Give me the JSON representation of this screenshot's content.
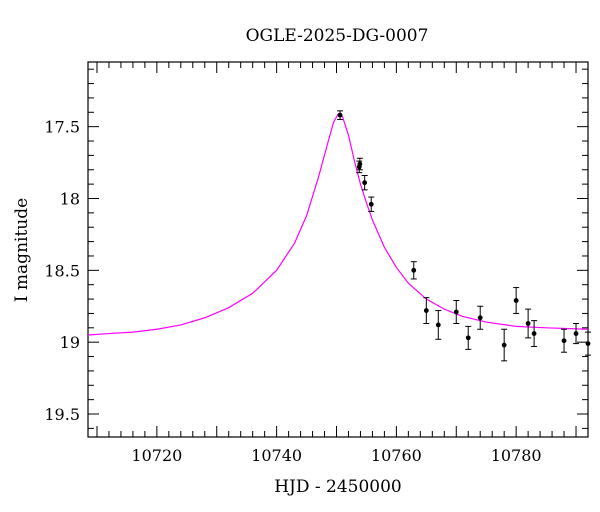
{
  "chart_data": {
    "type": "scatter",
    "title": "OGLE-2025-DG-0007",
    "xlabel": "HJD - 2450000",
    "ylabel": "I magnitude",
    "xlim": [
      10708.5,
      10792
    ],
    "ylim": [
      19.66,
      17.05
    ],
    "y_inverted": true,
    "x_ticks": [
      10720,
      10740,
      10760,
      10780
    ],
    "x_tick_labels": [
      "10720",
      "10740",
      "10760",
      "10780"
    ],
    "y_ticks": [
      17.5,
      18,
      18.5,
      19,
      19.5
    ],
    "y_tick_labels": [
      "17.5",
      "18",
      "18.5",
      "19",
      "19.5"
    ],
    "grid": false,
    "colors": {
      "model": "#ff00ff",
      "points": "#000000",
      "frame": "#000000"
    },
    "series": [
      {
        "kind": "points_with_errorbars",
        "x": [
          10750.6,
          10753.8,
          10753.9,
          10754.7,
          10755.8,
          10762.9,
          10765.0,
          10767.0,
          10770.0,
          10772.0,
          10774.0,
          10778.0,
          10780.0,
          10782.0,
          10783.0,
          10788.0,
          10790.0,
          10792.0
        ],
        "y": [
          17.42,
          17.78,
          17.76,
          17.89,
          18.04,
          18.5,
          18.78,
          18.88,
          18.79,
          18.97,
          18.83,
          19.02,
          18.71,
          18.87,
          18.94,
          18.99,
          18.94,
          19.01
        ],
        "err": [
          0.03,
          0.04,
          0.04,
          0.05,
          0.05,
          0.06,
          0.09,
          0.1,
          0.08,
          0.08,
          0.08,
          0.11,
          0.09,
          0.1,
          0.09,
          0.08,
          0.07,
          0.08
        ]
      },
      {
        "kind": "model_curve",
        "x": [
          10708.5,
          10712,
          10716,
          10720,
          10724,
          10728,
          10732,
          10736,
          10740,
          10743,
          10745,
          10747,
          10748.5,
          10749.5,
          10750.3,
          10751,
          10752,
          10753,
          10754,
          10755,
          10756,
          10758,
          10760,
          10762,
          10765,
          10768,
          10771,
          10775,
          10780,
          10785,
          10792
        ],
        "y": [
          18.95,
          18.94,
          18.93,
          18.91,
          18.88,
          18.83,
          18.76,
          18.66,
          18.5,
          18.31,
          18.12,
          17.85,
          17.62,
          17.47,
          17.41,
          17.43,
          17.56,
          17.74,
          17.9,
          18.03,
          18.15,
          18.34,
          18.48,
          18.59,
          18.7,
          18.77,
          18.82,
          18.86,
          18.89,
          18.9,
          18.91
        ]
      }
    ]
  }
}
